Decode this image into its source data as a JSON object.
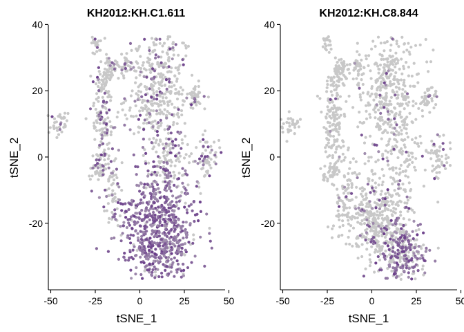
{
  "chart_data": [
    {
      "type": "scatter",
      "title": "KH2012:KH.C1.611",
      "xlabel": "tSNE_1",
      "ylabel": "tSNE_2",
      "xlim": [
        -52,
        50
      ],
      "ylim": [
        -40,
        40
      ],
      "xticks": [
        -50,
        -25,
        0,
        25,
        50
      ],
      "xtick_labels": [
        "-50",
        "-25",
        "0",
        "25",
        "50"
      ],
      "yticks": [
        -20,
        0,
        20,
        40
      ],
      "ytick_labels": [
        "-20",
        "0",
        "20",
        "40"
      ],
      "grid": false,
      "legend": "none",
      "color_low": "#c8c8c8",
      "color_high": "#6a3d8a",
      "expression_pattern": "high in lower cluster (y < -5), sparse elsewhere",
      "clusters": [
        {
          "cx": 10,
          "cy": 20,
          "sx": 9,
          "sy": 10,
          "n": 420,
          "expr": 0.2
        },
        {
          "cx": 10,
          "cy": -22,
          "sx": 11,
          "sy": 9,
          "n": 720,
          "expr": 0.92
        },
        {
          "cx": -17,
          "cy": 27,
          "sx": 2.2,
          "sy": 2,
          "n": 45,
          "expr": 0.1
        },
        {
          "cx": -24,
          "cy": 34,
          "sx": 1.8,
          "sy": 1.5,
          "n": 20,
          "expr": 0.05
        },
        {
          "cx": -8,
          "cy": 27,
          "sx": 2,
          "sy": 2,
          "n": 35,
          "expr": 0.15
        },
        {
          "cx": -20,
          "cy": 23,
          "sx": 2.5,
          "sy": 1.5,
          "n": 35,
          "expr": 0.1
        },
        {
          "cx": -21,
          "cy": 10,
          "sx": 3,
          "sy": 6,
          "n": 120,
          "expr": 0.25
        },
        {
          "cx": -45,
          "cy": 10,
          "sx": 3,
          "sy": 1.8,
          "n": 35,
          "expr": 0.1
        },
        {
          "cx": 31,
          "cy": 18,
          "sx": 2.2,
          "sy": 1.8,
          "n": 40,
          "expr": 0.15
        },
        {
          "cx": 38,
          "cy": 0,
          "sx": 3,
          "sy": 3,
          "n": 60,
          "expr": 0.3
        },
        {
          "cx": 17,
          "cy": 0,
          "sx": 6,
          "sy": 6,
          "n": 80,
          "expr": 0.25
        },
        {
          "cx": -23,
          "cy": -4,
          "sx": 3,
          "sy": 2,
          "n": 40,
          "expr": 0.2
        },
        {
          "cx": -15,
          "cy": -10,
          "sx": 3,
          "sy": 6,
          "n": 60,
          "expr": 0.3
        },
        {
          "cx": 16,
          "cy": -7,
          "sx": 1,
          "sy": 2,
          "n": 18,
          "expr": 0.85
        }
      ]
    },
    {
      "type": "scatter",
      "title": "KH2012:KH.C8.844",
      "xlabel": "tSNE_1",
      "ylabel": "tSNE_2",
      "xlim": [
        -52,
        50
      ],
      "ylim": [
        -40,
        40
      ],
      "xticks": [
        -50,
        -25,
        0,
        25,
        50
      ],
      "xtick_labels": [
        "-50",
        "-25",
        "0",
        "25",
        "50"
      ],
      "yticks": [
        -20,
        0,
        20,
        40
      ],
      "ytick_labels": [
        "-20",
        "0",
        "20",
        "40"
      ],
      "grid": false,
      "legend": "none",
      "color_low": "#c8c8c8",
      "color_high": "#6a3d8a",
      "expression_pattern": "moderate in lower-right of bottom cluster, mostly grey elsewhere",
      "clusters": [
        {
          "cx": 10,
          "cy": 20,
          "sx": 9,
          "sy": 10,
          "n": 420,
          "expr": 0.05
        },
        {
          "cx": 3,
          "cy": -18,
          "sx": 9,
          "sy": 7,
          "n": 420,
          "expr": 0.12
        },
        {
          "cx": 16,
          "cy": -29,
          "sx": 7,
          "sy": 5,
          "n": 300,
          "expr": 0.6
        },
        {
          "cx": -17,
          "cy": 27,
          "sx": 2.2,
          "sy": 2,
          "n": 45,
          "expr": 0.02
        },
        {
          "cx": -24,
          "cy": 34,
          "sx": 1.8,
          "sy": 1.5,
          "n": 20,
          "expr": 0.02
        },
        {
          "cx": -8,
          "cy": 27,
          "sx": 2,
          "sy": 2,
          "n": 35,
          "expr": 0.02
        },
        {
          "cx": -20,
          "cy": 23,
          "sx": 2.5,
          "sy": 1.5,
          "n": 35,
          "expr": 0.02
        },
        {
          "cx": -21,
          "cy": 10,
          "sx": 3,
          "sy": 6,
          "n": 120,
          "expr": 0.03
        },
        {
          "cx": -45,
          "cy": 10,
          "sx": 3,
          "sy": 1.8,
          "n": 35,
          "expr": 0.02
        },
        {
          "cx": 31,
          "cy": 18,
          "sx": 2.2,
          "sy": 1.8,
          "n": 40,
          "expr": 0.02
        },
        {
          "cx": 38,
          "cy": 0,
          "sx": 3,
          "sy": 3,
          "n": 60,
          "expr": 0.1
        },
        {
          "cx": 17,
          "cy": 0,
          "sx": 6,
          "sy": 6,
          "n": 80,
          "expr": 0.05
        },
        {
          "cx": -23,
          "cy": -4,
          "sx": 3,
          "sy": 2,
          "n": 40,
          "expr": 0.02
        },
        {
          "cx": -15,
          "cy": -10,
          "sx": 3,
          "sy": 6,
          "n": 60,
          "expr": 0.05
        }
      ]
    }
  ]
}
